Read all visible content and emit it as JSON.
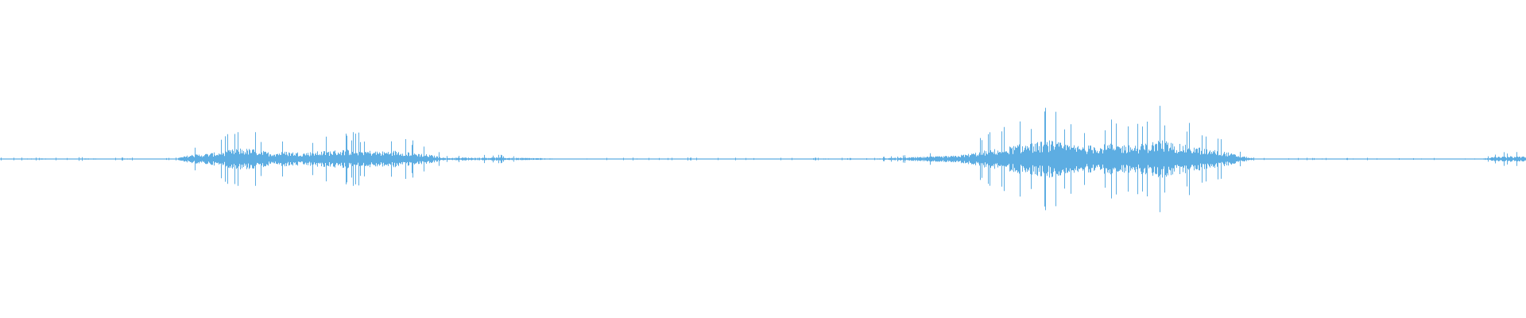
{
  "chart_data": {
    "type": "area",
    "title": "",
    "xlabel": "",
    "ylabel": "",
    "ylim": [
      -1,
      1
    ],
    "grid": false,
    "color": "#5dade2",
    "envelope_bins": 96,
    "envelope": [
      0.005,
      0.005,
      0.006,
      0.005,
      0.004,
      0.006,
      0.005,
      0.004,
      0.005,
      0.004,
      0.003,
      0.004,
      0.04,
      0.05,
      0.07,
      0.1,
      0.09,
      0.06,
      0.07,
      0.06,
      0.07,
      0.08,
      0.09,
      0.08,
      0.07,
      0.08,
      0.06,
      0.04,
      0.01,
      0.015,
      0.012,
      0.015,
      0.012,
      0.01,
      0.008,
      0.004,
      0.004,
      0.005,
      0.004,
      0.004,
      0.005,
      0.004,
      0.004,
      0.005,
      0.004,
      0.004,
      0.004,
      0.005,
      0.004,
      0.004,
      0.004,
      0.004,
      0.005,
      0.004,
      0.004,
      0.004,
      0.01,
      0.015,
      0.02,
      0.025,
      0.03,
      0.05,
      0.08,
      0.1,
      0.13,
      0.15,
      0.17,
      0.14,
      0.12,
      0.13,
      0.14,
      0.13,
      0.14,
      0.18,
      0.14,
      0.12,
      0.09,
      0.07,
      0.03,
      0.003,
      0.004,
      0.003,
      0.004,
      0.003,
      0.004,
      0.003,
      0.004,
      0.003,
      0.004,
      0.003,
      0.003,
      0.004,
      0.003,
      0.003,
      0.02,
      0.025
    ]
  }
}
